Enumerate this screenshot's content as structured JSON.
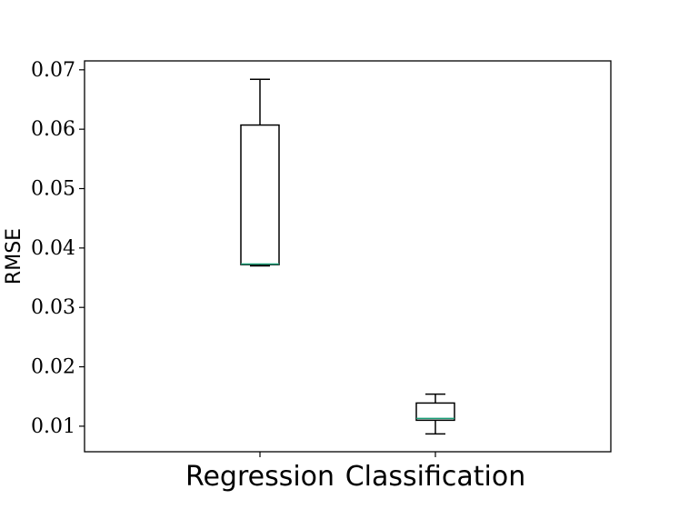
{
  "chart_data": {
    "type": "box",
    "title": "",
    "xlabel": "",
    "ylabel": "RMSE",
    "ylim": [
      0.0057,
      0.0715
    ],
    "yticks": [
      "0.01",
      "0.02",
      "0.03",
      "0.04",
      "0.05",
      "0.06",
      "0.07"
    ],
    "ytick_values": [
      0.01,
      0.02,
      0.03,
      0.04,
      0.05,
      0.06,
      0.07
    ],
    "grid": false,
    "median_color": "#1a9e77",
    "box_color": "#000000",
    "categories": [
      "Regression",
      "Classification"
    ],
    "boxes": [
      {
        "label": "Regression",
        "whisker_low": 0.037,
        "q1": 0.0372,
        "median": 0.0373,
        "q3": 0.0607,
        "whisker_high": 0.0684
      },
      {
        "label": "Classification",
        "whisker_low": 0.0087,
        "q1": 0.011,
        "median": 0.0113,
        "q3": 0.0139,
        "whisker_high": 0.0154
      }
    ]
  }
}
